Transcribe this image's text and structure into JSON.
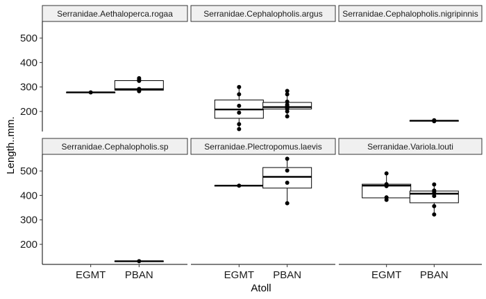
{
  "chart_data": {
    "type": "boxplot",
    "xlabel": "Atoll",
    "ylabel": "Length..mm.",
    "categories": [
      "EGMT",
      "PBAN"
    ],
    "yticks": [
      200,
      300,
      400,
      500
    ],
    "ylim": [
      118,
      568
    ],
    "facet_layout": {
      "rows": 2,
      "cols": 3
    },
    "panels": [
      {
        "strip": "Serranidae.Aethaloperca.rogaa",
        "groups": [
          {
            "category": "EGMT",
            "q1": 277,
            "median": 278,
            "q3": 279,
            "whisker_low": 277,
            "whisker_high": 279,
            "points": [
              278
            ]
          },
          {
            "category": "PBAN",
            "q1": 287,
            "median": 291,
            "q3": 326,
            "whisker_low": 283,
            "whisker_high": 336,
            "points": [
              283,
              287,
              292,
              325,
              330,
              336
            ]
          }
        ]
      },
      {
        "strip": "Serranidae.Cephalopholis.argus",
        "groups": [
          {
            "category": "EGMT",
            "q1": 172,
            "median": 208,
            "q3": 247,
            "whisker_low": 128,
            "whisker_high": 300,
            "points": [
              128,
              148,
              195,
              223,
              270,
              300
            ]
          },
          {
            "category": "PBAN",
            "q1": 210,
            "median": 218,
            "q3": 237,
            "whisker_low": 180,
            "whisker_high": 284,
            "points": [
              180,
              200,
              210,
              215,
              222,
              228,
              240,
              270,
              284
            ]
          }
        ]
      },
      {
        "strip": "Serranidae.Cephalopholis.nigripinnis",
        "groups": [
          {
            "category": "PBAN",
            "q1": 161,
            "median": 162,
            "q3": 163,
            "whisker_low": 160,
            "whisker_high": 165,
            "points": [
              160,
              162,
              164
            ]
          }
        ]
      },
      {
        "strip": "Serranidae.Cephalopholis.sp",
        "groups": [
          {
            "category": "PBAN",
            "q1": 130,
            "median": 131,
            "q3": 132,
            "whisker_low": 130,
            "whisker_high": 132,
            "points": [
              131
            ]
          }
        ]
      },
      {
        "strip": "Serranidae.Plectropomus.laevis",
        "groups": [
          {
            "category": "EGMT",
            "q1": 439,
            "median": 440,
            "q3": 441,
            "whisker_low": 439,
            "whisker_high": 441,
            "points": [
              440
            ]
          },
          {
            "category": "PBAN",
            "q1": 430,
            "median": 476,
            "q3": 514,
            "whisker_low": 368,
            "whisker_high": 550,
            "points": [
              368,
              452,
              502,
              550
            ]
          }
        ]
      },
      {
        "strip": "Serranidae.Variola.louti",
        "groups": [
          {
            "category": "EGMT",
            "q1": 390,
            "median": 440,
            "q3": 446,
            "whisker_low": 382,
            "whisker_high": 490,
            "points": [
              382,
              392,
              438,
              443,
              446,
              490
            ]
          },
          {
            "category": "PBAN",
            "q1": 370,
            "median": 407,
            "q3": 418,
            "whisker_low": 322,
            "whisker_high": 445,
            "points": [
              322,
              356,
              398,
              408,
              415,
              420,
              445
            ]
          }
        ]
      }
    ]
  }
}
